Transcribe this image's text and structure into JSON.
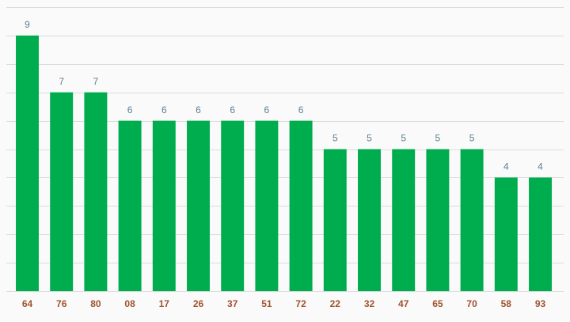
{
  "chart_data": {
    "type": "bar",
    "categories": [
      "64",
      "76",
      "80",
      "08",
      "17",
      "26",
      "37",
      "51",
      "72",
      "22",
      "32",
      "47",
      "65",
      "70",
      "58",
      "93"
    ],
    "values": [
      9,
      7,
      7,
      6,
      6,
      6,
      6,
      6,
      6,
      5,
      5,
      5,
      5,
      5,
      4,
      4
    ],
    "color": "#00ad4e",
    "ylim": [
      0,
      10
    ],
    "yticks": [
      0,
      1,
      2,
      3,
      4,
      5,
      6,
      7,
      8,
      9,
      10
    ],
    "grid": true
  }
}
